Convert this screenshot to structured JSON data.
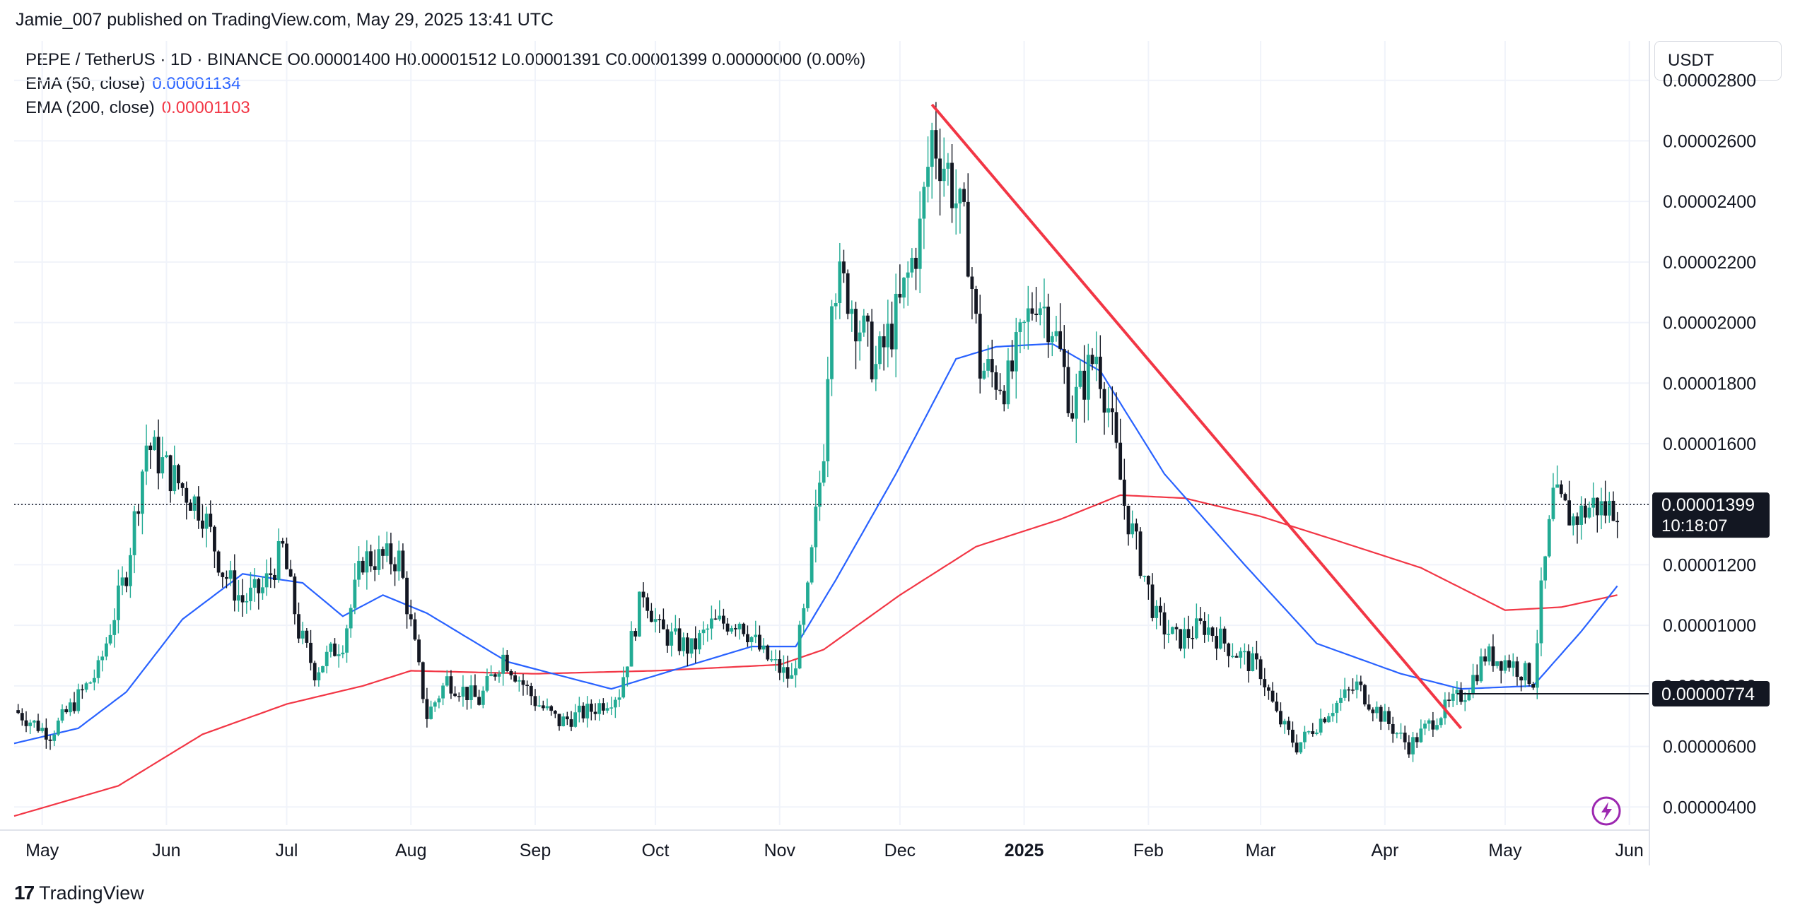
{
  "header": {
    "publisher_line": "Jamie_007 published on TradingView.com, May 29, 2025 13:41 UTC"
  },
  "legend": {
    "symbol_line": "PEPE / TetherUS · 1D · BINANCE  O0.00001400  H0.00001512  L0.00001391  C0.00001399  0.00000000 (0.00%)",
    "ema50_label": "EMA (50, close)",
    "ema50_value": "0.00001134",
    "ema200_label": "EMA (200, close)",
    "ema200_value": "0.00001103"
  },
  "price_axis": {
    "currency": "USDT",
    "ticks": [
      "0.00002800",
      "0.00002600",
      "0.00002400",
      "0.00002200",
      "0.00002000",
      "0.00001800",
      "0.00001600",
      "0.00001400",
      "0.00001200",
      "0.00001000",
      "0.00000800",
      "0.00000600",
      "0.00000400"
    ],
    "last_price_label": "0.00001399",
    "countdown_label": "10:18:07",
    "level_label": "0.00000774"
  },
  "time_axis": {
    "ticks": [
      "May",
      "Jun",
      "Jul",
      "Aug",
      "Sep",
      "Oct",
      "Nov",
      "Dec",
      "2025",
      "Feb",
      "Mar",
      "Apr",
      "May",
      "Jun"
    ]
  },
  "footer": {
    "brand": "TradingView",
    "logo_glyph": "17"
  },
  "colors": {
    "up": "#22ab94",
    "down": "#131722",
    "ema50": "#2962ff",
    "ema200": "#f23645",
    "trendline": "#f23645",
    "grid": "#f0f3fa",
    "accent": "#9c27b0"
  },
  "chart_data": {
    "type": "candlestick",
    "title": "PEPE / TetherUS · 1D · BINANCE",
    "ylabel": "USDT",
    "ylim": [
      3.4e-06,
      2.93e-05
    ],
    "x_start": "2024-04-24",
    "x_end": "2025-06-06",
    "x_ticks": [
      {
        "label": "May",
        "date": "2024-05-01"
      },
      {
        "label": "Jun",
        "date": "2024-06-01"
      },
      {
        "label": "Jul",
        "date": "2024-07-01"
      },
      {
        "label": "Aug",
        "date": "2024-08-01"
      },
      {
        "label": "Sep",
        "date": "2024-09-01"
      },
      {
        "label": "Oct",
        "date": "2024-10-01"
      },
      {
        "label": "Nov",
        "date": "2024-11-01"
      },
      {
        "label": "Dec",
        "date": "2024-12-01"
      },
      {
        "label": "2025",
        "date": "2025-01-01"
      },
      {
        "label": "Feb",
        "date": "2025-02-01"
      },
      {
        "label": "Mar",
        "date": "2025-03-01"
      },
      {
        "label": "Apr",
        "date": "2025-04-01"
      },
      {
        "label": "May",
        "date": "2025-05-01"
      },
      {
        "label": "Jun",
        "date": "2025-06-01"
      }
    ],
    "y_ticks": [
      2.8e-05,
      2.6e-05,
      2.4e-05,
      2.2e-05,
      2e-05,
      1.8e-05,
      1.6e-05,
      1.4e-05,
      1.2e-05,
      1e-05,
      8e-06,
      6e-06,
      4e-06
    ],
    "last_close": 1.399e-05,
    "horizontal_level": {
      "value": 7.74e-06,
      "from": "2025-04-19"
    },
    "trendline": {
      "from": {
        "date": "2024-12-09",
        "value": 2.72e-05
      },
      "to": {
        "date": "2025-04-20",
        "value": 6.6e-06
      }
    },
    "close_anchors": [
      {
        "date": "2024-04-24",
        "value": 7.2e-06
      },
      {
        "date": "2024-05-03",
        "value": 6.4e-06
      },
      {
        "date": "2024-05-15",
        "value": 8.5e-06
      },
      {
        "date": "2024-05-22",
        "value": 1.18e-05
      },
      {
        "date": "2024-05-27",
        "value": 1.6e-05
      },
      {
        "date": "2024-06-02",
        "value": 1.5e-05
      },
      {
        "date": "2024-06-10",
        "value": 1.38e-05
      },
      {
        "date": "2024-06-15",
        "value": 1.18e-05
      },
      {
        "date": "2024-06-20",
        "value": 1.08e-05
      },
      {
        "date": "2024-06-25",
        "value": 1.12e-05
      },
      {
        "date": "2024-06-30",
        "value": 1.25e-05
      },
      {
        "date": "2024-07-04",
        "value": 9.8e-06
      },
      {
        "date": "2024-07-08",
        "value": 8.5e-06
      },
      {
        "date": "2024-07-15",
        "value": 9.5e-06
      },
      {
        "date": "2024-07-20",
        "value": 1.22e-05
      },
      {
        "date": "2024-07-29",
        "value": 1.22e-05
      },
      {
        "date": "2024-08-05",
        "value": 7e-06
      },
      {
        "date": "2024-08-10",
        "value": 8.2e-06
      },
      {
        "date": "2024-08-18",
        "value": 7.5e-06
      },
      {
        "date": "2024-08-24",
        "value": 9e-06
      },
      {
        "date": "2024-09-01",
        "value": 7.5e-06
      },
      {
        "date": "2024-09-07",
        "value": 6.8e-06
      },
      {
        "date": "2024-09-15",
        "value": 7.2e-06
      },
      {
        "date": "2024-09-22",
        "value": 7.8e-06
      },
      {
        "date": "2024-09-28",
        "value": 1.12e-05
      },
      {
        "date": "2024-10-02",
        "value": 9.8e-06
      },
      {
        "date": "2024-10-10",
        "value": 9.2e-06
      },
      {
        "date": "2024-10-15",
        "value": 1e-05
      },
      {
        "date": "2024-10-22",
        "value": 1.02e-05
      },
      {
        "date": "2024-10-28",
        "value": 9e-06
      },
      {
        "date": "2024-11-04",
        "value": 8.2e-06
      },
      {
        "date": "2024-11-08",
        "value": 1.1e-05
      },
      {
        "date": "2024-11-12",
        "value": 1.6e-05
      },
      {
        "date": "2024-11-14",
        "value": 2.15e-05
      },
      {
        "date": "2024-11-18",
        "value": 2.1e-05
      },
      {
        "date": "2024-11-25",
        "value": 1.85e-05
      },
      {
        "date": "2024-12-01",
        "value": 2.05e-05
      },
      {
        "date": "2024-12-06",
        "value": 2.3e-05
      },
      {
        "date": "2024-12-09",
        "value": 2.62e-05
      },
      {
        "date": "2024-12-13",
        "value": 2.5e-05
      },
      {
        "date": "2024-12-18",
        "value": 2.25e-05
      },
      {
        "date": "2024-12-21",
        "value": 1.85e-05
      },
      {
        "date": "2024-12-28",
        "value": 1.8e-05
      },
      {
        "date": "2025-01-04",
        "value": 2.1e-05
      },
      {
        "date": "2025-01-08",
        "value": 2e-05
      },
      {
        "date": "2025-01-13",
        "value": 1.72e-05
      },
      {
        "date": "2025-01-19",
        "value": 1.9e-05
      },
      {
        "date": "2025-01-22",
        "value": 1.72e-05
      },
      {
        "date": "2025-01-26",
        "value": 1.4e-05
      },
      {
        "date": "2025-02-03",
        "value": 1.02e-05
      },
      {
        "date": "2025-02-08",
        "value": 9.5e-06
      },
      {
        "date": "2025-02-15",
        "value": 1e-05
      },
      {
        "date": "2025-02-22",
        "value": 9.2e-06
      },
      {
        "date": "2025-03-01",
        "value": 8.5e-06
      },
      {
        "date": "2025-03-05",
        "value": 7e-06
      },
      {
        "date": "2025-03-10",
        "value": 6e-06
      },
      {
        "date": "2025-03-18",
        "value": 7.2e-06
      },
      {
        "date": "2025-03-25",
        "value": 8e-06
      },
      {
        "date": "2025-03-30",
        "value": 7.2e-06
      },
      {
        "date": "2025-04-07",
        "value": 6e-06
      },
      {
        "date": "2025-04-14",
        "value": 7e-06
      },
      {
        "date": "2025-04-21",
        "value": 7.8e-06
      },
      {
        "date": "2025-04-26",
        "value": 9e-06
      },
      {
        "date": "2025-05-02",
        "value": 8.8e-06
      },
      {
        "date": "2025-05-08",
        "value": 8.2e-06
      },
      {
        "date": "2025-05-10",
        "value": 1.1e-05
      },
      {
        "date": "2025-05-13",
        "value": 1.42e-05
      },
      {
        "date": "2025-05-18",
        "value": 1.35e-05
      },
      {
        "date": "2025-05-23",
        "value": 1.4e-05
      },
      {
        "date": "2025-05-26",
        "value": 1.38e-05
      },
      {
        "date": "2025-05-29",
        "value": 1.4e-05
      }
    ],
    "ema50_anchors": [
      {
        "date": "2024-04-24",
        "value": 6.1e-06
      },
      {
        "date": "2024-05-10",
        "value": 6.6e-06
      },
      {
        "date": "2024-05-22",
        "value": 7.8e-06
      },
      {
        "date": "2024-06-05",
        "value": 1.02e-05
      },
      {
        "date": "2024-06-20",
        "value": 1.17e-05
      },
      {
        "date": "2024-07-05",
        "value": 1.14e-05
      },
      {
        "date": "2024-07-15",
        "value": 1.03e-05
      },
      {
        "date": "2024-07-25",
        "value": 1.1e-05
      },
      {
        "date": "2024-08-05",
        "value": 1.04e-05
      },
      {
        "date": "2024-08-25",
        "value": 8.8e-06
      },
      {
        "date": "2024-09-20",
        "value": 7.9e-06
      },
      {
        "date": "2024-10-05",
        "value": 8.5e-06
      },
      {
        "date": "2024-10-25",
        "value": 9.3e-06
      },
      {
        "date": "2024-11-05",
        "value": 9.3e-06
      },
      {
        "date": "2024-11-15",
        "value": 1.15e-05
      },
      {
        "date": "2024-11-30",
        "value": 1.5e-05
      },
      {
        "date": "2024-12-15",
        "value": 1.88e-05
      },
      {
        "date": "2024-12-25",
        "value": 1.92e-05
      },
      {
        "date": "2025-01-08",
        "value": 1.93e-05
      },
      {
        "date": "2025-01-20",
        "value": 1.84e-05
      },
      {
        "date": "2025-02-05",
        "value": 1.5e-05
      },
      {
        "date": "2025-02-25",
        "value": 1.2e-05
      },
      {
        "date": "2025-03-15",
        "value": 9.4e-06
      },
      {
        "date": "2025-04-05",
        "value": 8.4e-06
      },
      {
        "date": "2025-04-20",
        "value": 7.9e-06
      },
      {
        "date": "2025-05-08",
        "value": 8e-06
      },
      {
        "date": "2025-05-20",
        "value": 9.8e-06
      },
      {
        "date": "2025-05-29",
        "value": 1.13e-05
      }
    ],
    "ema200_anchors": [
      {
        "date": "2024-04-24",
        "value": 3.7e-06
      },
      {
        "date": "2024-05-20",
        "value": 4.7e-06
      },
      {
        "date": "2024-06-10",
        "value": 6.4e-06
      },
      {
        "date": "2024-07-01",
        "value": 7.4e-06
      },
      {
        "date": "2024-07-20",
        "value": 8e-06
      },
      {
        "date": "2024-08-01",
        "value": 8.5e-06
      },
      {
        "date": "2024-09-01",
        "value": 8.4e-06
      },
      {
        "date": "2024-10-01",
        "value": 8.5e-06
      },
      {
        "date": "2024-11-01",
        "value": 8.7e-06
      },
      {
        "date": "2024-11-12",
        "value": 9.2e-06
      },
      {
        "date": "2024-12-01",
        "value": 1.1e-05
      },
      {
        "date": "2024-12-20",
        "value": 1.26e-05
      },
      {
        "date": "2025-01-10",
        "value": 1.35e-05
      },
      {
        "date": "2025-01-25",
        "value": 1.43e-05
      },
      {
        "date": "2025-02-10",
        "value": 1.42e-05
      },
      {
        "date": "2025-03-01",
        "value": 1.36e-05
      },
      {
        "date": "2025-03-20",
        "value": 1.28e-05
      },
      {
        "date": "2025-04-10",
        "value": 1.19e-05
      },
      {
        "date": "2025-05-01",
        "value": 1.05e-05
      },
      {
        "date": "2025-05-15",
        "value": 1.06e-05
      },
      {
        "date": "2025-05-29",
        "value": 1.1e-05
      }
    ]
  }
}
